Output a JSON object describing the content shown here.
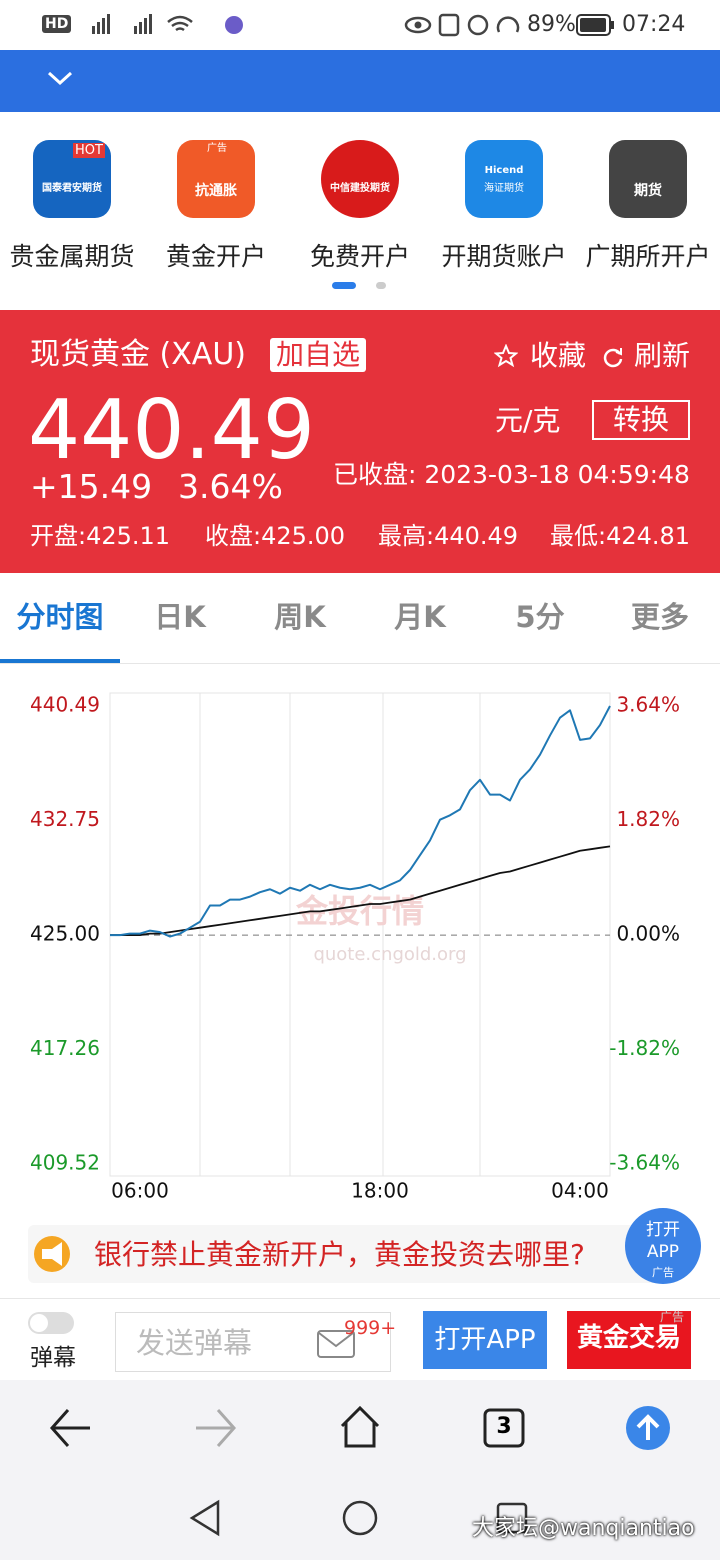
{
  "status_bar": {
    "hd": "HD",
    "battery": "89%",
    "time": "07:24"
  },
  "ad_row": {
    "items": [
      {
        "label": "贵金属期货",
        "badge": "HOT",
        "logo": "国泰君安期货"
      },
      {
        "label": "黄金开户",
        "badge": "广告",
        "logo": "抗通胀"
      },
      {
        "label": "免费开户",
        "logo": "中信建投期货"
      },
      {
        "label": "开期货账户",
        "logo": "Hicend",
        "sub": "海证期货"
      },
      {
        "label": "广期所开户",
        "logo": "期货"
      }
    ]
  },
  "quote": {
    "name": "现货黄金 (XAU)",
    "add": "加自选",
    "favorite": "收藏",
    "refresh": "刷新",
    "price": "440.49",
    "unit": "元/克",
    "convert": "转换",
    "change": "+15.49",
    "change_pct": "3.64%",
    "status": "已收盘: 2023-03-18 04:59:48",
    "open": "开盘:425.11",
    "close": "收盘:425.00",
    "high": "最高:440.49",
    "low": "最低:424.81"
  },
  "tabs": [
    "分时图",
    "日K",
    "周K",
    "月K",
    "5分",
    "更多"
  ],
  "chart_data": {
    "type": "line",
    "categories": [
      null,
      null,
      null,
      "06:00",
      null,
      null,
      null,
      null,
      null,
      null,
      null,
      null,
      null,
      null,
      null,
      null,
      null,
      null,
      null,
      null,
      null,
      null,
      null,
      null,
      null,
      null,
      null,
      "18:00",
      null,
      null,
      null,
      null,
      null,
      null,
      null,
      null,
      null,
      null,
      null,
      null,
      null,
      null,
      null,
      null,
      null,
      null,
      null,
      "04:00",
      null,
      null,
      null
    ],
    "series": [
      {
        "color": "#1f78b4",
        "values": [
          425.0,
          425.0,
          425.1,
          425.1,
          425.3,
          425.2,
          424.9,
          425.1,
          425.5,
          425.9,
          427.0,
          427.0,
          427.4,
          427.4,
          427.6,
          427.9,
          428.1,
          427.8,
          428.2,
          428.0,
          428.4,
          428.1,
          428.4,
          428.2,
          428.1,
          428.2,
          428.4,
          428.1,
          428.4,
          428.7,
          429.4,
          430.4,
          431.4,
          432.8,
          433.1,
          433.5,
          434.8,
          435.5,
          434.5,
          434.5,
          434.1,
          435.5,
          436.2,
          437.2,
          438.5,
          439.7,
          440.2,
          438.2,
          438.3,
          439.2,
          440.49
        ]
      },
      {
        "color": "#111111",
        "values": [
          425.0,
          425.0,
          425.0,
          425.0,
          425.1,
          425.1,
          425.2,
          425.3,
          425.4,
          425.5,
          425.6,
          425.7,
          425.8,
          425.9,
          426.0,
          426.1,
          426.2,
          426.3,
          426.4,
          426.5,
          426.6,
          426.6,
          426.7,
          426.8,
          426.9,
          427.0,
          427.1,
          427.1,
          427.2,
          427.3,
          427.4,
          427.6,
          427.8,
          428.0,
          428.2,
          428.4,
          428.6,
          428.8,
          429.0,
          429.2,
          429.3,
          429.5,
          429.7,
          429.9,
          430.1,
          430.3,
          430.5,
          430.7,
          430.8,
          430.9,
          431.0
        ]
      }
    ],
    "ylim": [
      409.52,
      440.49
    ],
    "yticks": [
      440.49,
      432.75,
      {
        "value": 425,
        "label": "425.00"
      },
      417.26,
      409.52
    ],
    "y2lim": [
      -3.64,
      3.64
    ],
    "y2ticks": [
      {
        "value": 3.64,
        "label": "3.64%"
      },
      {
        "value": 1.82,
        "label": "1.82%"
      },
      {
        "value": 0,
        "label": "0.00%"
      },
      {
        "value": -1.82,
        "label": "-1.82%"
      },
      {
        "value": -3.64,
        "label": "-3.64%"
      }
    ],
    "up_color": "#c0181e",
    "down_color": "#1b9a2a",
    "watermark": "金投行情",
    "watermark_url": "quote.cngold.org"
  },
  "banner": {
    "text": "银行禁止黄金新开户，黄金投资去哪里?",
    "float_line1": "打开",
    "float_line2": "APP",
    "float_ad": "广告"
  },
  "bottom_bar": {
    "danmu": "弹幕",
    "placeholder": "发送弹幕",
    "count": "999+",
    "open_app": "打开APP",
    "trade": "黄金交易",
    "ad": "广告"
  },
  "browser_nav": {
    "tabs": "3"
  },
  "watermark": "大家坛@wanqiantiao"
}
